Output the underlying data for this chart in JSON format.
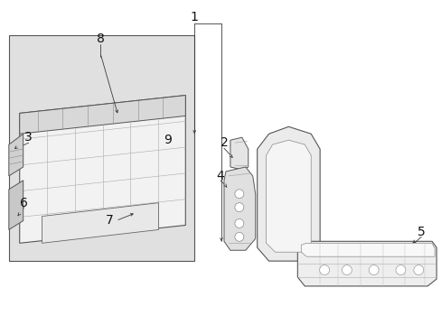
{
  "bg_color": "#ffffff",
  "lc": "#3a3a3a",
  "gray1": "#c8c8c8",
  "gray2": "#e0e0e0",
  "gray3": "#eeeeee",
  "gray_inset": "#dedede",
  "figsize": [
    4.89,
    3.6
  ],
  "dpi": 100,
  "label_fs": 9
}
